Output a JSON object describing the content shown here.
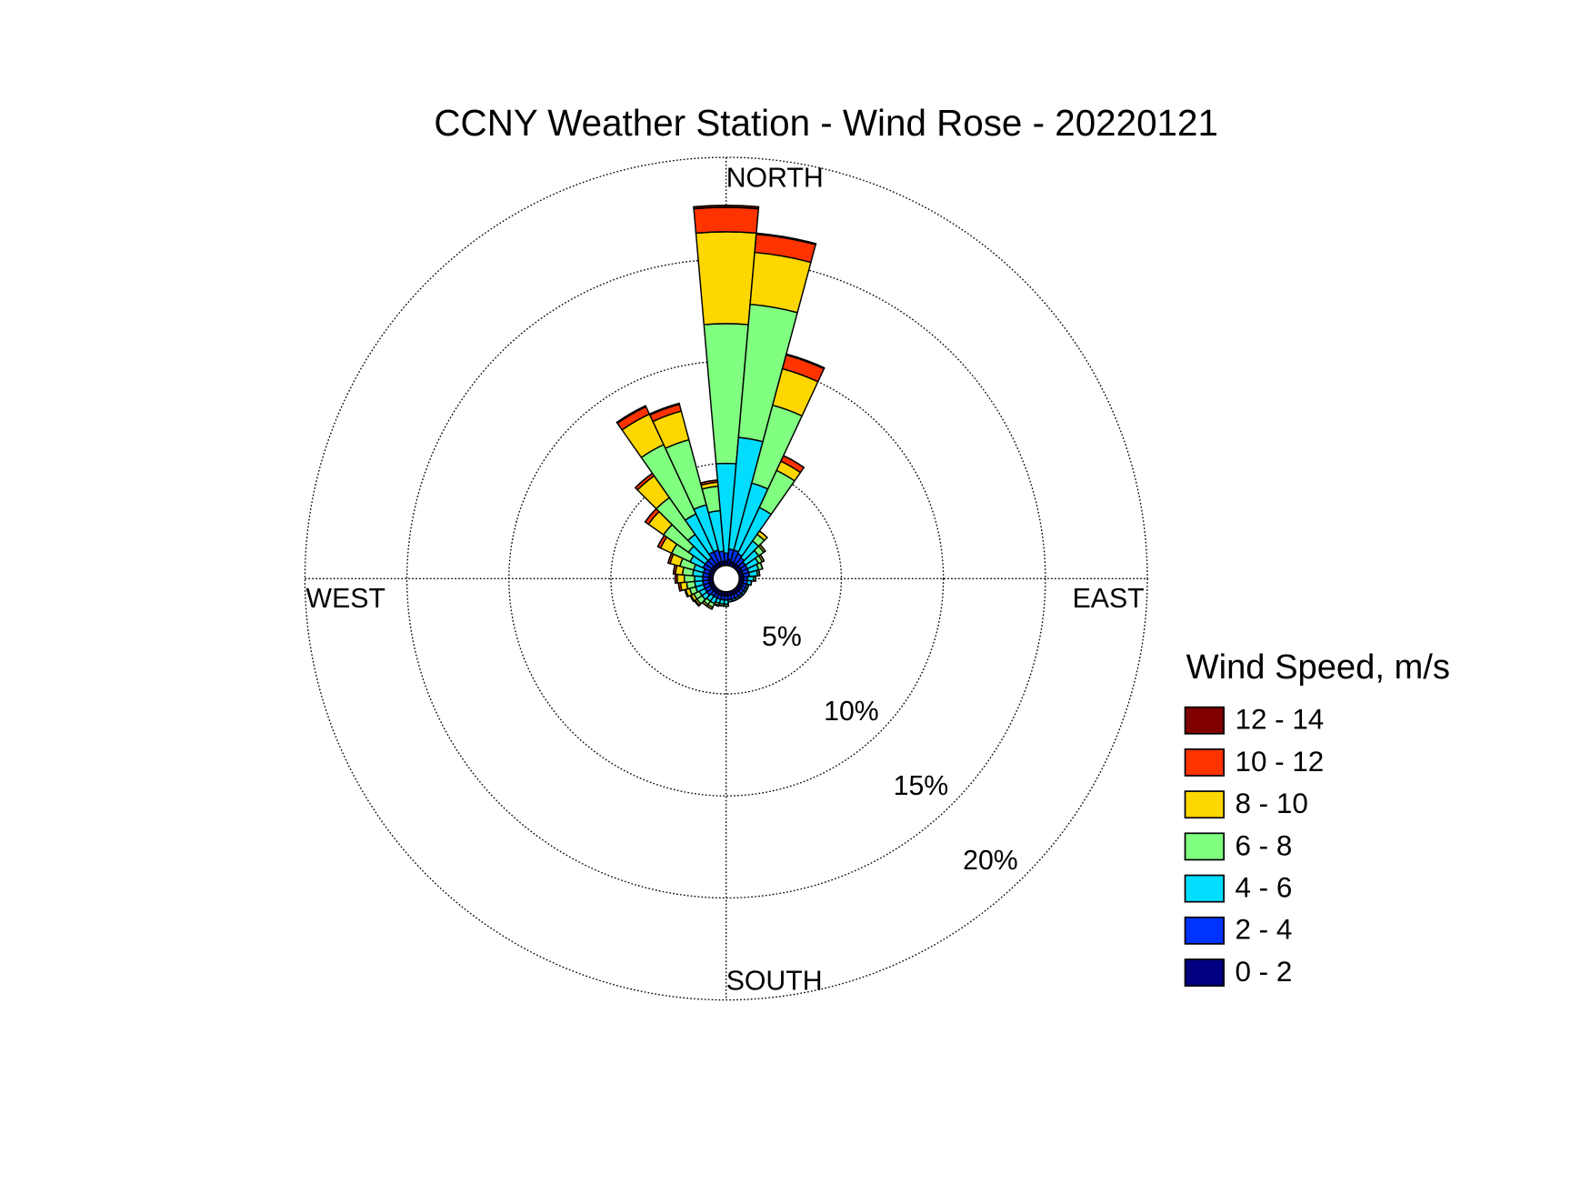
{
  "chart_data": {
    "type": "windrose",
    "title": "CCNY Weather Station - Wind Rose - 20220121",
    "x": [
      0,
      10,
      20,
      30,
      40,
      50,
      60,
      70,
      80,
      90,
      100,
      110,
      120,
      130,
      140,
      150,
      160,
      170,
      180,
      190,
      200,
      210,
      220,
      230,
      240,
      250,
      260,
      270,
      280,
      290,
      300,
      310,
      320,
      330,
      340,
      350
    ],
    "rlim": [
      0,
      20
    ],
    "rticks": [
      {
        "value": 5,
        "label": "5%"
      },
      {
        "value": 10,
        "label": "10%"
      },
      {
        "value": 15,
        "label": "15%"
      },
      {
        "value": 20,
        "label": "20%"
      }
    ],
    "direction_labels": {
      "north": "NORTH",
      "east": "EAST",
      "south": "SOUTH",
      "west": "WEST"
    },
    "legend_title": "Wind Speed, m/s",
    "grid": true,
    "series": [
      {
        "name": "0 - 2",
        "color": "#000080",
        "values": [
          0.2,
          0.3,
          0.2,
          0.2,
          0.2,
          0.2,
          0.2,
          0.2,
          0.2,
          0.2,
          0.2,
          0.2,
          0.2,
          0.2,
          0.2,
          0.2,
          0.2,
          0.2,
          0.2,
          0.2,
          0.2,
          0.2,
          0.2,
          0.2,
          0.2,
          0.2,
          0.2,
          0.2,
          0.2,
          0.2,
          0.2,
          0.2,
          0.2,
          0.2,
          0.2,
          0.2
        ]
      },
      {
        "name": "2 - 4",
        "color": "#0033ff",
        "values": [
          0.4,
          0.5,
          0.6,
          0.5,
          0.4,
          0.3,
          0.3,
          0.3,
          0.3,
          0.2,
          0.2,
          0.2,
          0.2,
          0.2,
          0.2,
          0.2,
          0.2,
          0.2,
          0.2,
          0.2,
          0.2,
          0.2,
          0.2,
          0.3,
          0.3,
          0.3,
          0.3,
          0.3,
          0.3,
          0.3,
          0.4,
          0.4,
          0.4,
          0.6,
          0.6,
          0.5
        ]
      },
      {
        "name": "4 - 6",
        "color": "#00ddff",
        "values": [
          4.4,
          5.5,
          3.4,
          2.5,
          1.0,
          0.8,
          0.6,
          0.5,
          0.4,
          0.3,
          0.2,
          0.1,
          0.1,
          0.1,
          0.1,
          0.1,
          0.1,
          0.1,
          0.2,
          0.2,
          0.2,
          0.3,
          0.3,
          0.3,
          0.3,
          0.4,
          0.4,
          0.4,
          0.5,
          0.5,
          0.7,
          1.0,
          1.4,
          2.05,
          2.3,
          2.0
        ]
      },
      {
        "name": "6 - 8",
        "color": "#80ff80",
        "values": [
          6.85,
          6.55,
          3.95,
          2.0,
          0.4,
          0.3,
          0.2,
          0.2,
          0.1,
          0.1,
          0,
          0,
          0,
          0,
          0,
          0,
          0,
          0,
          0.1,
          0.1,
          0.1,
          0.2,
          0.2,
          0.3,
          0.3,
          0.3,
          0.4,
          0.5,
          0.5,
          0.7,
          1.0,
          1.5,
          2.2,
          3.75,
          3.3,
          1.2
        ]
      },
      {
        "name": "8 - 10",
        "color": "#ffd700",
        "values": [
          4.5,
          2.55,
          1.85,
          0.5,
          0.2,
          0.1,
          0.1,
          0,
          0,
          0,
          0,
          0,
          0,
          0,
          0,
          0,
          0,
          0,
          0,
          0,
          0.05,
          0.1,
          0.1,
          0.1,
          0.15,
          0.2,
          0.3,
          0.35,
          0.35,
          0.5,
          0.6,
          0.9,
          1.3,
          1.65,
          1.45,
          0.2
        ]
      },
      {
        "name": "10 - 12",
        "color": "#ff3300",
        "values": [
          1.2,
          0.9,
          0.7,
          0.3,
          0,
          0,
          0,
          0,
          0,
          0,
          0,
          0,
          0,
          0,
          0,
          0,
          0,
          0,
          0,
          0,
          0,
          0,
          0,
          0.05,
          0.05,
          0.05,
          0.1,
          0.1,
          0.1,
          0.1,
          0.15,
          0.2,
          0.15,
          0.4,
          0.35,
          0.1
        ]
      },
      {
        "name": "12 - 14",
        "color": "#800000",
        "values": [
          0.1,
          0.05,
          0.05,
          0,
          0,
          0,
          0,
          0,
          0,
          0,
          0,
          0,
          0,
          0,
          0,
          0,
          0,
          0,
          0,
          0,
          0,
          0,
          0,
          0,
          0,
          0,
          0,
          0,
          0,
          0,
          0,
          0,
          0,
          0.05,
          0.05,
          0
        ]
      }
    ]
  }
}
